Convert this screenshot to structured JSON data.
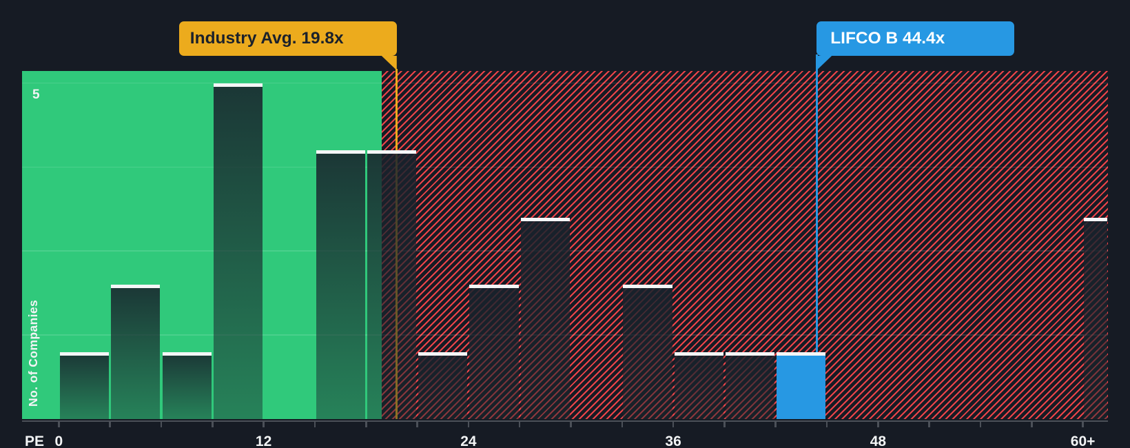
{
  "chart_data": {
    "type": "bar",
    "title": "",
    "xlabel": "PE",
    "ylabel": "No. of Companies",
    "x_axis": {
      "name": "PE",
      "pe_min": 0,
      "pe_max": 60,
      "minor_tick_step_pe": 3,
      "tick_labels": [
        {
          "pe": 0,
          "text": "0"
        },
        {
          "pe": 12,
          "text": "12"
        },
        {
          "pe": 24,
          "text": "24"
        },
        {
          "pe": 36,
          "text": "36"
        },
        {
          "pe": 48,
          "text": "48"
        },
        {
          "pe": 60,
          "text": "60+"
        }
      ]
    },
    "y_axis": {
      "name": "No. of Companies",
      "max_label": {
        "value": 5,
        "text": "5"
      },
      "gridline_values": [
        1.25,
        2.5,
        3.75,
        5
      ],
      "ylim": [
        0,
        5.18
      ],
      "grid": true
    },
    "bars": [
      {
        "pe_start": 0,
        "pe_end": 3,
        "count": 1,
        "highlight": false
      },
      {
        "pe_start": 3,
        "pe_end": 6,
        "count": 2,
        "highlight": false
      },
      {
        "pe_start": 6,
        "pe_end": 9,
        "count": 1,
        "highlight": false
      },
      {
        "pe_start": 9,
        "pe_end": 12,
        "count": 5,
        "highlight": false
      },
      {
        "pe_start": 15,
        "pe_end": 18,
        "count": 4,
        "highlight": false
      },
      {
        "pe_start": 18,
        "pe_end": 21,
        "count": 4,
        "highlight": false
      },
      {
        "pe_start": 21,
        "pe_end": 24,
        "count": 1,
        "highlight": false
      },
      {
        "pe_start": 24,
        "pe_end": 27,
        "count": 2,
        "highlight": false
      },
      {
        "pe_start": 27,
        "pe_end": 30,
        "count": 3,
        "highlight": false
      },
      {
        "pe_start": 33,
        "pe_end": 36,
        "count": 2,
        "highlight": false
      },
      {
        "pe_start": 36,
        "pe_end": 39,
        "count": 1,
        "highlight": false
      },
      {
        "pe_start": 39,
        "pe_end": 42,
        "count": 1,
        "highlight": false
      },
      {
        "pe_start": 42,
        "pe_end": 45,
        "count": 1,
        "highlight": true
      },
      {
        "pe_start": 60,
        "pe_end": 61.5,
        "count": 3,
        "highlight": false
      }
    ],
    "annotations": [
      {
        "id": "industry-average",
        "text": "Industry Avg. 19.8x",
        "pe": 19.8,
        "box_side": "left"
      },
      {
        "id": "company",
        "text": "LIFCO B 44.4x",
        "pe": 44.4,
        "box_side": "right"
      }
    ],
    "regions": [
      {
        "id": "below-industry-average",
        "style": "solid-green",
        "pe_from": -2.15,
        "pe_to": 18.9
      },
      {
        "id": "above-industry-average",
        "style": "red-hatch",
        "pe_from": 18.9,
        "pe_to": 61.5
      }
    ],
    "legend_position": "none"
  },
  "colors": {
    "background": "#161b24",
    "green_region": "#30c97b",
    "hatch_red": "#ee4449",
    "highlight_blue": "#2798e3",
    "callout_yellow": "#ecab1d",
    "callout_text_dark": "#1b212b",
    "bar_white_top": "#f4f6f7",
    "axis_text": "#f2f4f5",
    "axis_line": "#4b5058",
    "gridline": "rgba(255,255,255,0.13)"
  }
}
